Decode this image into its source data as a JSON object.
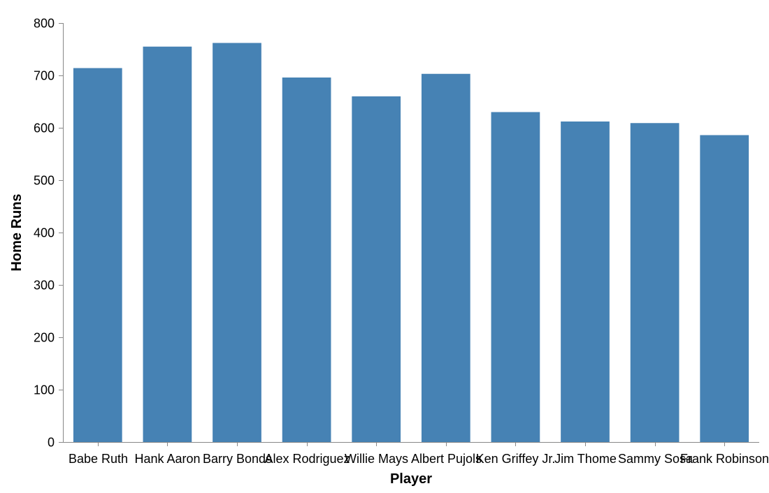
{
  "chart_data": {
    "type": "bar",
    "title": "",
    "xlabel": "Player",
    "ylabel": "Home Runs",
    "categories": [
      "Babe Ruth",
      "Hank Aaron",
      "Barry Bonds",
      "Alex Rodriguez",
      "Willie Mays",
      "Albert Pujols",
      "Ken Griffey Jr.",
      "Jim Thome",
      "Sammy Sosa",
      "Frank Robinson"
    ],
    "values": [
      714,
      755,
      762,
      696,
      660,
      703,
      630,
      612,
      609,
      586
    ],
    "ylim": [
      0,
      800
    ],
    "yticks": [
      0,
      100,
      200,
      300,
      400,
      500,
      600,
      700,
      800
    ],
    "grid": false,
    "legend": "none",
    "bar_color": "#4682b4",
    "axis_color": "#888888"
  }
}
